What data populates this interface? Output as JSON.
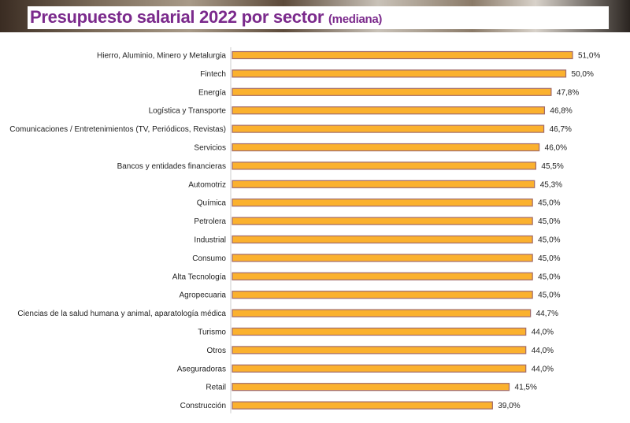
{
  "chart_data": {
    "type": "bar",
    "orientation": "horizontal",
    "title": "Presupuesto salarial 2022 por sector",
    "subtitle": "(mediana)",
    "categories": [
      "Hierro, Aluminio, Minero y Metalurgia",
      "Fintech",
      "Energía",
      "Logística y Transporte",
      "Comunicaciones / Entretenimientos (TV, Periódicos, Revistas)",
      "Servicios",
      "Bancos y entidades financieras",
      "Automotriz",
      "Química",
      "Petrolera",
      "Industrial",
      "Consumo",
      "Alta Tecnología",
      "Agropecuaria",
      "Ciencias de la salud humana y animal, aparatología médica",
      "Turismo",
      "Otros",
      "Aseguradoras",
      "Retail",
      "Construcción"
    ],
    "values": [
      51.0,
      50.0,
      47.8,
      46.8,
      46.7,
      46.0,
      45.5,
      45.3,
      45.0,
      45.0,
      45.0,
      45.0,
      45.0,
      45.0,
      44.7,
      44.0,
      44.0,
      44.0,
      41.5,
      39.0
    ],
    "data_labels": [
      "51,0%",
      "50,0%",
      "47,8%",
      "46,8%",
      "46,7%",
      "46,0%",
      "45,5%",
      "45,3%",
      "45,0%",
      "45,0%",
      "45,0%",
      "45,0%",
      "45,0%",
      "45,0%",
      "44,7%",
      "44,0%",
      "44,0%",
      "44,0%",
      "41,5%",
      "39,0%"
    ],
    "xlim": [
      0,
      51
    ],
    "grid": false,
    "legend": "none",
    "colors": {
      "bar_fill": "#fbb12e",
      "bar_border": "#a06a6a",
      "title": "#7b2a8c",
      "axis": "#cccccc"
    }
  }
}
